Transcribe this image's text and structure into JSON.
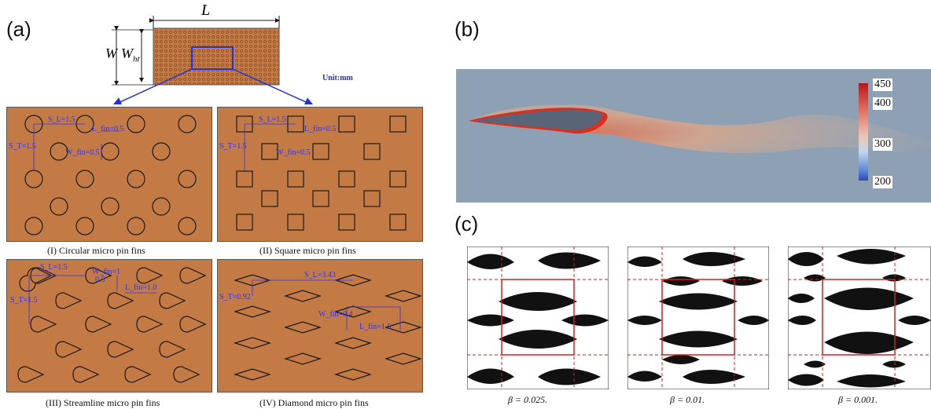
{
  "figure": {
    "panel_a": "(a)",
    "panel_b": "(b)",
    "panel_c": "(c)"
  },
  "schematic": {
    "L": "L",
    "W": "W",
    "W_ht": "W",
    "W_ht_sub": "ht",
    "unit": "Unit:mm"
  },
  "subpanels": [
    {
      "caption": "(I)  Circular micro pin fins",
      "dims": [
        "S_L=1.5",
        "S_T=1.5",
        "L_fin=0.5",
        "W_fin=0.5"
      ]
    },
    {
      "caption": "(II) Square micro pin fins",
      "dims": [
        "S_L=1.5",
        "S_T=1.5",
        "L_fin=0.5",
        "W_fin=0.5"
      ]
    },
    {
      "caption": "(III) Streamline micro pin fins",
      "dims": [
        "S_L=1.5",
        "S_T=1.5",
        "W_fin=1",
        "0.5",
        "L_fin=1.0"
      ]
    },
    {
      "caption": "(IV) Diamond micro pin fins",
      "dims": [
        "S_L=3.43",
        "S_T=0.92",
        "W_fin=0.4",
        "L_fin=1.5"
      ]
    }
  ],
  "colorbar": {
    "ticks": [
      "450",
      "400",
      "300",
      "200"
    ]
  },
  "topology": [
    {
      "beta": "β = 0.025."
    },
    {
      "beta": "β = 0.01."
    },
    {
      "beta": "β = 0.001."
    }
  ],
  "colors": {
    "copper": "#c47a45",
    "fin_line": "#1a1a1a",
    "dim_blue": "#3333dd",
    "flow_bg": "#8ea0b3",
    "hot": "#d02020"
  }
}
